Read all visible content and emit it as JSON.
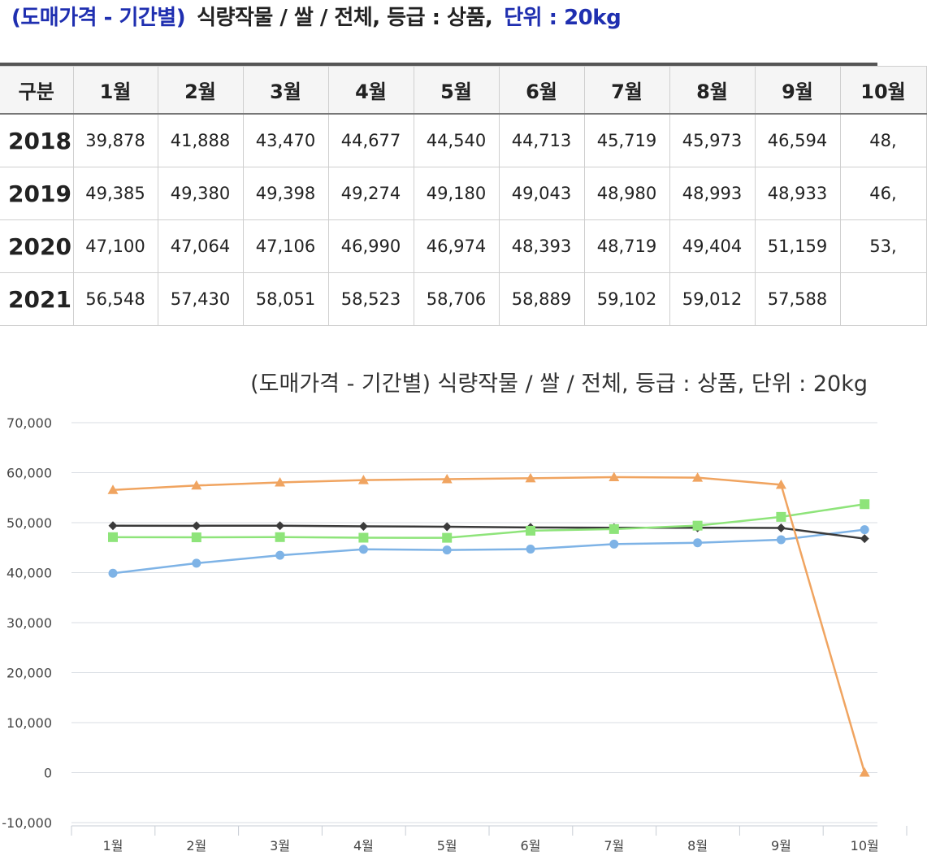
{
  "header": {
    "prefix": "(도매가격 - 기간별)",
    "middle": "식량작물 / 쌀 / 전체,  등급 : 상품,",
    "unit": "단위 : 20kg"
  },
  "table": {
    "corner": "구분",
    "columns": [
      "1월",
      "2월",
      "3월",
      "4월",
      "5월",
      "6월",
      "7월",
      "8월",
      "9월",
      "10월"
    ],
    "rows": [
      {
        "year": "2018",
        "values": [
          "39,878",
          "41,888",
          "43,470",
          "44,677",
          "44,540",
          "44,713",
          "45,719",
          "45,973",
          "46,594",
          "48,"
        ]
      },
      {
        "year": "2019",
        "values": [
          "49,385",
          "49,380",
          "49,398",
          "49,274",
          "49,180",
          "49,043",
          "48,980",
          "48,993",
          "48,933",
          "46,"
        ]
      },
      {
        "year": "2020",
        "values": [
          "47,100",
          "47,064",
          "47,106",
          "46,990",
          "46,974",
          "48,393",
          "48,719",
          "49,404",
          "51,159",
          "53,"
        ]
      },
      {
        "year": "2021",
        "values": [
          "56,548",
          "57,430",
          "58,051",
          "58,523",
          "58,706",
          "58,889",
          "59,102",
          "59,012",
          "57,588",
          ""
        ]
      }
    ]
  },
  "chart_data": {
    "type": "line",
    "title": "(도매가격 - 기간별) 식량작물 / 쌀 / 전체, 등급 : 상품, 단위 : 20kg",
    "xlabel": "",
    "ylabel": "",
    "categories": [
      "1월",
      "2월",
      "3월",
      "4월",
      "5월",
      "6월",
      "7월",
      "8월",
      "9월",
      "10월"
    ],
    "ylim": [
      -10000,
      70000
    ],
    "yticks": [
      -10000,
      0,
      10000,
      20000,
      30000,
      40000,
      50000,
      60000,
      70000
    ],
    "ytick_labels": [
      "-10,000",
      "0",
      "10,000",
      "20,000",
      "30,000",
      "40,000",
      "50,000",
      "60,000",
      "70,000"
    ],
    "grid": true,
    "series": [
      {
        "color": "#7eb3e6",
        "marker": "circle",
        "values": [
          39878,
          41888,
          43470,
          44677,
          44540,
          44713,
          45719,
          45973,
          46594,
          48600
        ]
      },
      {
        "color": "#3a3a3a",
        "marker": "diamond",
        "values": [
          49385,
          49380,
          49398,
          49274,
          49180,
          49043,
          48980,
          48993,
          48933,
          46800
        ]
      },
      {
        "color": "#8ee47a",
        "marker": "square",
        "values": [
          47100,
          47064,
          47106,
          46990,
          46974,
          48393,
          48719,
          49404,
          51159,
          53700
        ]
      },
      {
        "color": "#f0a460",
        "marker": "triangle",
        "values": [
          56548,
          57430,
          58051,
          58523,
          58706,
          58889,
          59102,
          59012,
          57588,
          0
        ]
      }
    ]
  }
}
